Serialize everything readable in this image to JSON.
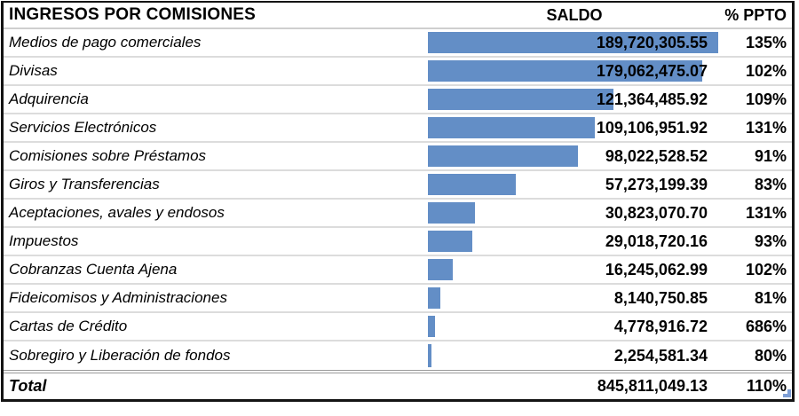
{
  "title": "INGRESOS POR COMISIONES",
  "columns": {
    "saldo": "SALDO",
    "ppto": "% PPTO"
  },
  "bar_color": "#638EC6",
  "handle_color": "#7D9ED5",
  "rows": [
    {
      "label": "Medios de pago comerciales",
      "saldo": "189,720,305.55",
      "value": 189720305.55,
      "ppto": "135%"
    },
    {
      "label": "Divisas",
      "saldo": "179,062,475.07",
      "value": 179062475.07,
      "ppto": "102%"
    },
    {
      "label": "Adquirencia",
      "saldo": "121,364,485.92",
      "value": 121364485.92,
      "ppto": "109%"
    },
    {
      "label": "Servicios Electrónicos",
      "saldo": "109,106,951.92",
      "value": 109106951.92,
      "ppto": "131%"
    },
    {
      "label": "Comisiones sobre Préstamos",
      "saldo": "98,022,528.52",
      "value": 98022528.52,
      "ppto": "91%"
    },
    {
      "label": "Giros y Transferencias",
      "saldo": "57,273,199.39",
      "value": 57273199.39,
      "ppto": "83%"
    },
    {
      "label": "Aceptaciones, avales y endosos",
      "saldo": "30,823,070.70",
      "value": 30823070.7,
      "ppto": "131%"
    },
    {
      "label": "Impuestos",
      "saldo": "29,018,720.16",
      "value": 29018720.16,
      "ppto": "93%"
    },
    {
      "label": "Cobranzas Cuenta Ajena",
      "saldo": "16,245,062.99",
      "value": 16245062.99,
      "ppto": "102%"
    },
    {
      "label": "Fideicomisos y Administraciones",
      "saldo": "8,140,750.85",
      "value": 8140750.85,
      "ppto": "81%"
    },
    {
      "label": "Cartas de Crédito",
      "saldo": "4,778,916.72",
      "value": 4778916.72,
      "ppto": "686%"
    },
    {
      "label": "Sobregiro y Liberación de fondos",
      "saldo": "2,254,581.34",
      "value": 2254581.34,
      "ppto": "80%"
    }
  ],
  "total": {
    "label": "Total",
    "saldo": "845,811,049.13",
    "value": 845811049.13,
    "ppto": "110%"
  },
  "chart_data": {
    "type": "bar",
    "orientation": "horizontal",
    "title": "INGRESOS POR COMISIONES",
    "columns": [
      "SALDO",
      "% PPTO"
    ],
    "categories": [
      "Medios de pago comerciales",
      "Divisas",
      "Adquirencia",
      "Servicios Electrónicos",
      "Comisiones sobre Préstamos",
      "Giros y Transferencias",
      "Aceptaciones, avales y endosos",
      "Impuestos",
      "Cobranzas Cuenta Ajena",
      "Fideicomisos y Administraciones",
      "Cartas de Crédito",
      "Sobregiro y Liberación de fondos"
    ],
    "values": [
      189720305.55,
      179062475.07,
      121364485.92,
      109106951.92,
      98022528.52,
      57273199.39,
      30823070.7,
      29018720.16,
      16245062.99,
      8140750.85,
      4778916.72,
      2254581.34
    ],
    "pct_ppto": [
      "135%",
      "102%",
      "109%",
      "131%",
      "91%",
      "83%",
      "131%",
      "93%",
      "102%",
      "81%",
      "686%",
      "80%"
    ],
    "total_value": 845811049.13,
    "total_pct": "110%",
    "xlim": [
      0,
      189720305.55
    ],
    "bar_color": "#638EC6",
    "grid": false,
    "legend": "none"
  }
}
